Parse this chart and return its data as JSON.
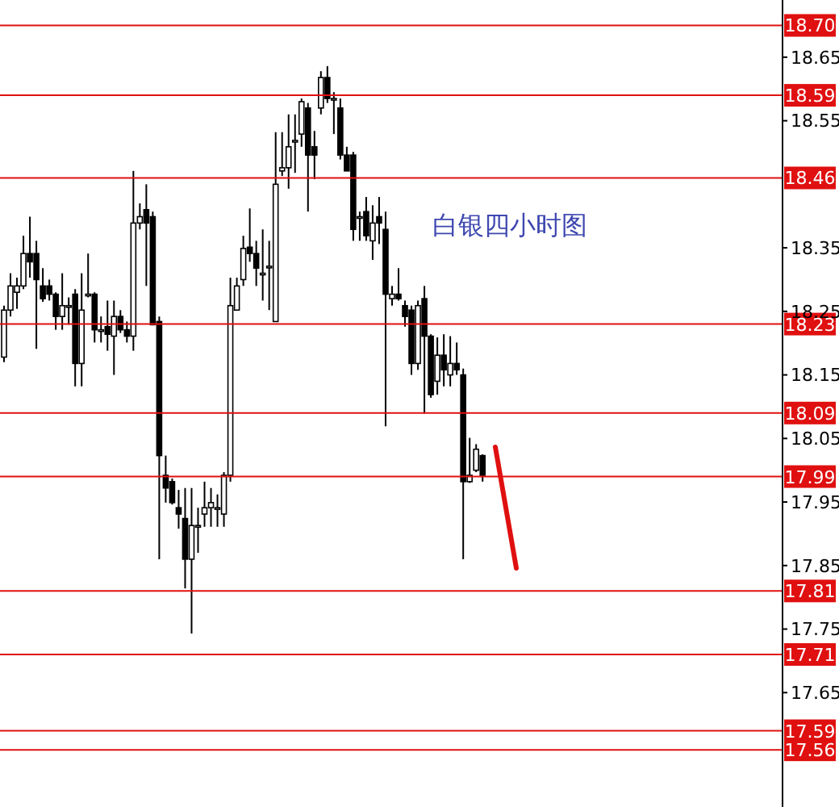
{
  "chart_data": {
    "type": "candlestick",
    "title": "白银四小时图",
    "categories": [
      null,
      null,
      null,
      null,
      null,
      null,
      null,
      null,
      null,
      null,
      null,
      null,
      null,
      null,
      null,
      null,
      null,
      null,
      null,
      null,
      null,
      null,
      null,
      null,
      null,
      null,
      null,
      null,
      null,
      null,
      null,
      null,
      null,
      null,
      null,
      null,
      null,
      null,
      null,
      null,
      null,
      null,
      null,
      null,
      null,
      null,
      null,
      null,
      null,
      null,
      null,
      null,
      null,
      null,
      null,
      null,
      null,
      null,
      null,
      null,
      null,
      null,
      null,
      null,
      null,
      null,
      null,
      null,
      null,
      null,
      null,
      null,
      null,
      null,
      null,
      null,
      null,
      null,
      null,
      null,
      null,
      null,
      null,
      null,
      null,
      null,
      null,
      null,
      null,
      null,
      null,
      null,
      null,
      null,
      null,
      null,
      null,
      null,
      null,
      null,
      null,
      null,
      null,
      null,
      null,
      null,
      null,
      null,
      null,
      null,
      null,
      null,
      null,
      null,
      null,
      null,
      null,
      null,
      null,
      null,
      null
    ],
    "ohlc": [
      [
        18.178,
        18.259,
        18.17,
        18.252
      ],
      [
        18.252,
        18.31,
        18.242,
        18.29
      ],
      [
        18.28,
        18.303,
        18.254,
        18.29
      ],
      [
        18.29,
        18.369,
        18.285,
        18.341
      ],
      [
        18.341,
        18.399,
        18.303,
        18.328
      ],
      [
        18.341,
        18.361,
        18.191,
        18.3
      ],
      [
        18.29,
        18.318,
        18.265,
        18.27
      ],
      [
        18.29,
        18.3,
        18.267,
        18.277
      ],
      [
        18.277,
        18.28,
        18.221,
        18.242
      ],
      [
        18.242,
        18.31,
        18.221,
        18.259
      ],
      [
        18.259,
        18.272,
        18.229,
        18.259
      ],
      [
        18.277,
        18.285,
        18.132,
        18.168
      ],
      [
        18.168,
        18.31,
        18.132,
        18.252
      ],
      [
        18.277,
        18.341,
        18.272,
        18.277
      ],
      [
        18.277,
        18.28,
        18.201,
        18.221
      ],
      [
        18.221,
        18.242,
        18.201,
        18.221
      ],
      [
        18.226,
        18.267,
        18.188,
        18.214
      ],
      [
        18.211,
        18.267,
        18.15,
        18.242
      ],
      [
        18.242,
        18.252,
        18.216,
        18.221
      ],
      [
        18.221,
        18.234,
        18.201,
        18.211
      ],
      [
        18.211,
        18.471,
        18.188,
        18.389
      ],
      [
        18.389,
        18.42,
        18.379,
        18.399
      ],
      [
        18.41,
        18.45,
        18.29,
        18.389
      ],
      [
        18.399,
        18.407,
        18.229,
        18.229
      ],
      [
        18.234,
        18.242,
        17.86,
        18.023
      ],
      [
        17.992,
        18.023,
        17.949,
        17.972
      ],
      [
        17.982,
        17.987,
        17.946,
        17.949
      ],
      [
        17.941,
        17.969,
        17.908,
        17.931
      ],
      [
        17.924,
        17.972,
        17.814,
        17.86
      ],
      [
        17.86,
        17.972,
        17.743,
        17.913
      ],
      [
        17.913,
        17.941,
        17.87,
        17.913
      ],
      [
        17.931,
        17.982,
        17.911,
        17.941
      ],
      [
        17.941,
        17.972,
        17.911,
        17.949
      ],
      [
        17.941,
        17.962,
        17.911,
        17.941
      ],
      [
        17.931,
        17.997,
        17.911,
        17.992
      ],
      [
        17.992,
        18.303,
        17.982,
        18.259
      ],
      [
        18.252,
        18.303,
        18.252,
        18.29
      ],
      [
        18.3,
        18.369,
        18.29,
        18.349
      ],
      [
        18.351,
        18.412,
        18.328,
        18.341
      ],
      [
        18.341,
        18.361,
        18.29,
        18.318
      ],
      [
        18.31,
        18.379,
        18.267,
        18.31
      ],
      [
        18.321,
        18.361,
        18.252,
        18.321
      ],
      [
        18.234,
        18.532,
        18.234,
        18.45
      ],
      [
        18.471,
        18.532,
        18.463,
        18.476
      ],
      [
        18.476,
        18.56,
        18.443,
        18.509
      ],
      [
        18.519,
        18.56,
        18.468,
        18.519
      ],
      [
        18.529,
        18.585,
        18.509,
        18.58
      ],
      [
        18.57,
        18.578,
        18.407,
        18.496
      ],
      [
        18.509,
        18.534,
        18.458,
        18.496
      ],
      [
        18.57,
        18.628,
        18.56,
        18.618
      ],
      [
        18.618,
        18.636,
        18.578,
        18.585
      ],
      [
        18.585,
        18.595,
        18.529,
        18.585
      ],
      [
        18.57,
        18.585,
        18.489,
        18.496
      ],
      [
        18.496,
        18.509,
        18.471,
        18.471
      ],
      [
        18.496,
        18.501,
        18.361,
        18.379
      ],
      [
        18.399,
        18.407,
        18.361,
        18.399
      ],
      [
        18.407,
        18.43,
        18.361,
        18.369
      ],
      [
        18.361,
        18.417,
        18.331,
        18.389
      ],
      [
        18.399,
        18.43,
        18.356,
        18.389
      ],
      [
        18.379,
        18.407,
        18.069,
        18.277
      ],
      [
        18.27,
        18.29,
        18.259,
        18.277
      ],
      [
        18.277,
        18.318,
        18.267,
        18.27
      ],
      [
        18.259,
        18.267,
        18.226,
        18.242
      ],
      [
        18.252,
        18.259,
        18.15,
        18.168
      ],
      [
        18.168,
        18.267,
        18.158,
        18.259
      ],
      [
        18.27,
        18.29,
        18.089,
        18.211
      ],
      [
        18.211,
        18.214,
        18.114,
        18.119
      ],
      [
        18.14,
        18.209,
        18.119,
        18.181
      ],
      [
        18.181,
        18.214,
        18.132,
        18.158
      ],
      [
        18.15,
        18.211,
        18.132,
        18.168
      ],
      [
        18.168,
        18.201,
        18.15,
        18.158
      ],
      [
        18.15,
        18.16,
        17.86,
        17.982
      ],
      [
        17.982,
        18.051,
        17.98,
        17.992
      ],
      [
        18.0,
        18.041,
        17.997,
        18.033
      ],
      [
        18.023,
        18.025,
        17.982,
        17.992
      ],
      null,
      null,
      null,
      null,
      null,
      null,
      null,
      null,
      null,
      null,
      null,
      null,
      null,
      null,
      null,
      null,
      null,
      null,
      null,
      null,
      null,
      null,
      null,
      null,
      null,
      null,
      null,
      null,
      null,
      null,
      null,
      null,
      null,
      null,
      null,
      null,
      null,
      null,
      null,
      null,
      null,
      null,
      null,
      null,
      null,
      null
    ],
    "ylim": [
      17.47,
      18.74
    ],
    "yticks": [
      18.65,
      18.55,
      18.35,
      18.25,
      18.15,
      18.05,
      17.95,
      17.85,
      17.75,
      17.65
    ],
    "tick_labels": "y",
    "ref_lines": [
      {
        "axis": "y",
        "value": 18.7,
        "label": "18.70",
        "color": "#e01010"
      },
      {
        "axis": "y",
        "value": 18.59,
        "label": "18.59",
        "color": "#e01010"
      },
      {
        "axis": "y",
        "value": 18.46,
        "label": "18.46",
        "color": "#e01010"
      },
      {
        "axis": "y",
        "value": 18.23,
        "label": "18.23",
        "color": "#e01010"
      },
      {
        "axis": "y",
        "value": 18.09,
        "label": "18.09",
        "color": "#e01010"
      },
      {
        "axis": "y",
        "value": 17.99,
        "label": "17.99",
        "color": "#e01010"
      },
      {
        "axis": "y",
        "value": 17.81,
        "label": "17.81",
        "color": "#e01010"
      },
      {
        "axis": "y",
        "value": 17.71,
        "label": "17.71",
        "color": "#e01010"
      },
      {
        "axis": "y",
        "value": 17.59,
        "label": "17.59",
        "color": "#e01010"
      },
      {
        "axis": "y",
        "value": 17.56,
        "label": "17.56",
        "color": "#e01010"
      }
    ]
  }
}
